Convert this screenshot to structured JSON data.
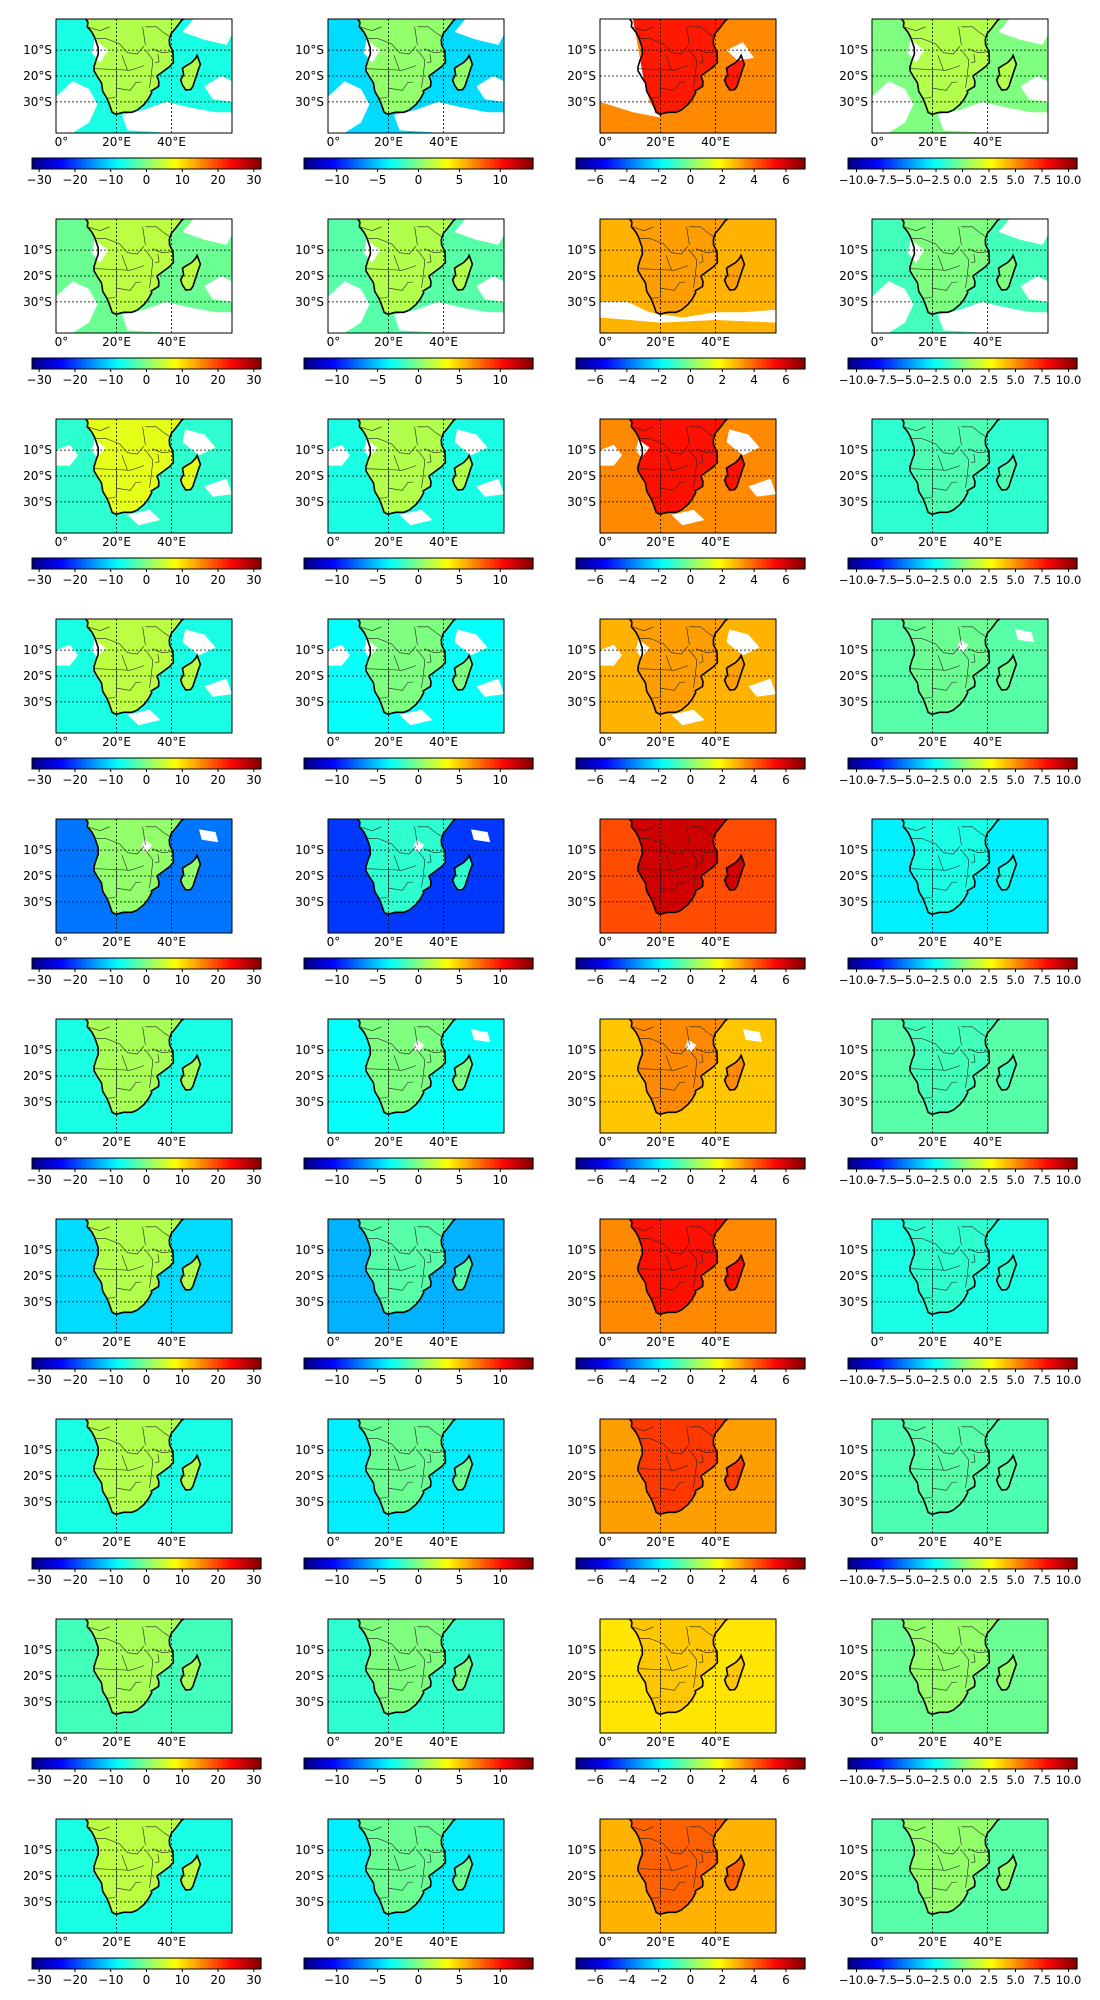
{
  "figure": {
    "rows": 10,
    "columns": 4,
    "lat_tick_labels": [
      "10°S",
      "20°S",
      "30°S"
    ],
    "lon_tick_labels": [
      "0°",
      "20°E",
      "40°E"
    ],
    "colormap": "jet",
    "colormap_stops": [
      "#00007f",
      "#0000ff",
      "#007fff",
      "#00ffff",
      "#7fff7f",
      "#ffff00",
      "#ff7f00",
      "#ff0000",
      "#7f0000"
    ],
    "missing_value_color": "#ffffff",
    "colorbars": [
      {
        "column": 1,
        "range": [
          -32,
          32
        ],
        "ticks": [
          "−30",
          "−20",
          "−10",
          "0",
          "10",
          "20",
          "30"
        ],
        "tick_values": [
          -30,
          -20,
          -10,
          0,
          10,
          20,
          30
        ]
      },
      {
        "column": 2,
        "range": [
          -14,
          14
        ],
        "ticks": [
          "−10",
          "−5",
          "0",
          "5",
          "10"
        ],
        "tick_values": [
          -10,
          -5,
          0,
          5,
          10
        ]
      },
      {
        "column": 3,
        "range": [
          -7.2,
          7.2
        ],
        "ticks": [
          "−6",
          "−4",
          "−2",
          "0",
          "2",
          "4",
          "6"
        ],
        "tick_values": [
          -6,
          -4,
          -2,
          0,
          2,
          4,
          6
        ]
      },
      {
        "column": 4,
        "range": [
          -10.8,
          10.8
        ],
        "ticks": [
          "−10.0",
          "−7.5",
          "−5.0",
          "−2.5",
          "0.0",
          "2.5",
          "5.0",
          "7.5",
          "10.0"
        ],
        "tick_values": [
          -10,
          -7.5,
          -5,
          -2.5,
          0,
          2.5,
          5,
          7.5,
          10
        ]
      }
    ],
    "panel_fields": [
      [
        {
          "sea": 0.4,
          "land": 0.55,
          "missing": "heavy"
        },
        {
          "sea": 0.34,
          "land": 0.52,
          "missing": "heavy"
        },
        {
          "sea": 0.74,
          "land": 0.85,
          "missing": "west"
        },
        {
          "sea": 0.5,
          "land": 0.55,
          "missing": "heavy"
        }
      ],
      [
        {
          "sea": 0.48,
          "land": 0.56,
          "missing": "heavy"
        },
        {
          "sea": 0.46,
          "land": 0.55,
          "missing": "heavy"
        },
        {
          "sea": 0.7,
          "land": 0.72,
          "missing": "south"
        },
        {
          "sea": 0.44,
          "land": 0.5,
          "missing": "heavy"
        }
      ],
      [
        {
          "sea": 0.42,
          "land": 0.6,
          "missing": "medium"
        },
        {
          "sea": 0.4,
          "land": 0.55,
          "missing": "medium"
        },
        {
          "sea": 0.74,
          "land": 0.86,
          "missing": "medium"
        },
        {
          "sea": 0.42,
          "land": 0.45,
          "missing": "none"
        }
      ],
      [
        {
          "sea": 0.4,
          "land": 0.56,
          "missing": "medium"
        },
        {
          "sea": 0.38,
          "land": 0.5,
          "missing": "medium"
        },
        {
          "sea": 0.7,
          "land": 0.72,
          "missing": "medium"
        },
        {
          "sea": 0.46,
          "land": 0.48,
          "missing": "light"
        }
      ],
      [
        {
          "sea": 0.24,
          "land": 0.52,
          "missing": "light"
        },
        {
          "sea": 0.18,
          "land": 0.42,
          "missing": "light"
        },
        {
          "sea": 0.8,
          "land": 0.92,
          "missing": "none"
        },
        {
          "sea": 0.36,
          "land": 0.4,
          "missing": "none"
        }
      ],
      [
        {
          "sea": 0.4,
          "land": 0.54,
          "missing": "none"
        },
        {
          "sea": 0.38,
          "land": 0.5,
          "missing": "light"
        },
        {
          "sea": 0.68,
          "land": 0.74,
          "missing": "light"
        },
        {
          "sea": 0.46,
          "land": 0.44,
          "missing": "none"
        }
      ],
      [
        {
          "sea": 0.34,
          "land": 0.55,
          "missing": "none"
        },
        {
          "sea": 0.3,
          "land": 0.46,
          "missing": "none"
        },
        {
          "sea": 0.74,
          "land": 0.86,
          "missing": "none"
        },
        {
          "sea": 0.4,
          "land": 0.42,
          "missing": "none"
        }
      ],
      [
        {
          "sea": 0.4,
          "land": 0.55,
          "missing": "none"
        },
        {
          "sea": 0.36,
          "land": 0.48,
          "missing": "none"
        },
        {
          "sea": 0.72,
          "land": 0.82,
          "missing": "none"
        },
        {
          "sea": 0.45,
          "land": 0.46,
          "missing": "none"
        }
      ],
      [
        {
          "sea": 0.44,
          "land": 0.54,
          "missing": "none"
        },
        {
          "sea": 0.42,
          "land": 0.5,
          "missing": "none"
        },
        {
          "sea": 0.65,
          "land": 0.68,
          "missing": "none"
        },
        {
          "sea": 0.48,
          "land": 0.52,
          "missing": "none"
        }
      ],
      [
        {
          "sea": 0.4,
          "land": 0.56,
          "missing": "none"
        },
        {
          "sea": 0.36,
          "land": 0.48,
          "missing": "none"
        },
        {
          "sea": 0.7,
          "land": 0.78,
          "missing": "none"
        },
        {
          "sea": 0.46,
          "land": 0.52,
          "missing": "none"
        }
      ]
    ]
  }
}
